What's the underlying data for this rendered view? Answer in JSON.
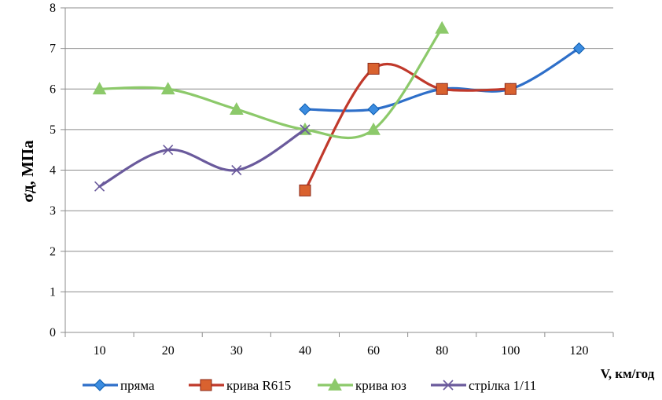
{
  "chart_data": {
    "type": "line",
    "smooth": true,
    "categories": [
      "10",
      "20",
      "30",
      "40",
      "60",
      "80",
      "100",
      "120"
    ],
    "ylim": [
      0,
      8
    ],
    "yticks": [
      0,
      1,
      2,
      3,
      4,
      5,
      6,
      7,
      8
    ],
    "ylabel": "σд, МПа",
    "xlabel": "V, км/год",
    "grid": "horizontal",
    "legend_position": "bottom",
    "series": [
      {
        "name": "пряма",
        "color": "#2E6FC9",
        "marker": "diamond",
        "marker_color": "#3B8CE0",
        "values": [
          null,
          null,
          null,
          5.5,
          5.5,
          6.0,
          6.0,
          7.0
        ]
      },
      {
        "name": "крива R615",
        "color": "#C0392B",
        "marker": "square",
        "marker_color": "#D9622F",
        "values": [
          null,
          null,
          null,
          3.5,
          6.5,
          6.0,
          6.0,
          null
        ]
      },
      {
        "name": "крива юз",
        "color": "#8CC96A",
        "marker": "triangle",
        "marker_color": "#8CC96A",
        "values": [
          6.0,
          6.0,
          5.5,
          5.0,
          5.0,
          7.5,
          null,
          null
        ]
      },
      {
        "name": "стрілка 1/11",
        "color": "#6A5A9C",
        "marker": "x",
        "marker_color": "#6A5A9C",
        "values": [
          3.6,
          4.5,
          4.0,
          5.0,
          null,
          null,
          null,
          null
        ]
      }
    ]
  }
}
